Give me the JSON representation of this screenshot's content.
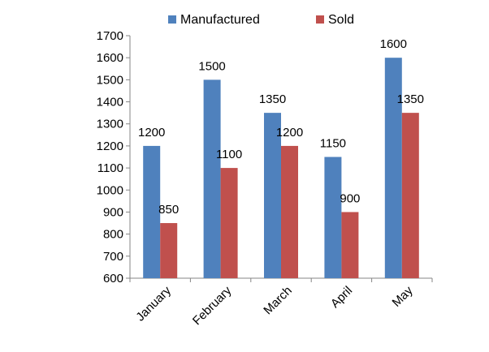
{
  "chart_data": {
    "type": "bar",
    "categories": [
      "January",
      "February",
      "March",
      "April",
      "May"
    ],
    "series": [
      {
        "name": "Manufactured",
        "values": [
          1200,
          1500,
          1350,
          1150,
          1600
        ],
        "color": "#4f81bd"
      },
      {
        "name": "Sold",
        "values": [
          850,
          1100,
          1200,
          900,
          1350
        ],
        "color": "#c0504d"
      }
    ],
    "ylim": [
      600,
      1700
    ],
    "yticks": [
      600,
      700,
      800,
      900,
      1000,
      1100,
      1200,
      1300,
      1400,
      1500,
      1600,
      1700
    ],
    "xlabel": "",
    "ylabel": "",
    "title": "",
    "grid": false,
    "legend_position": "top"
  }
}
